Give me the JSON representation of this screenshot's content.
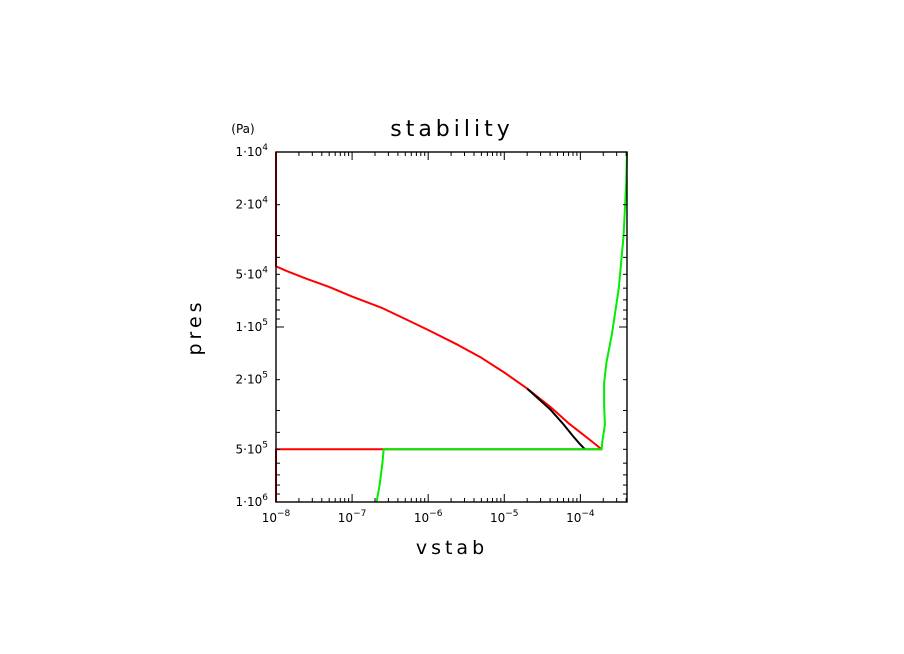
{
  "chart_data": {
    "type": "line",
    "title": "stability",
    "xlabel": "vstab",
    "ylabel": "pres",
    "yunit": "(Pa)",
    "xscale": "log",
    "yscale": "log",
    "y_inverted": true,
    "xlim": [
      1e-08,
      0.00041
    ],
    "ylim": [
      10000,
      1000000
    ],
    "grid": false,
    "legend": "none",
    "x_ticks": [
      {
        "value": 1e-08,
        "base": "10",
        "exp": "−8"
      },
      {
        "value": 1e-07,
        "base": "10",
        "exp": "−7"
      },
      {
        "value": 1e-06,
        "base": "10",
        "exp": "−6"
      },
      {
        "value": 1e-05,
        "base": "10",
        "exp": "−5"
      },
      {
        "value": 0.0001,
        "base": "10",
        "exp": "−4"
      }
    ],
    "y_ticks": [
      {
        "value": 10000,
        "base": "1·10",
        "exp": "4"
      },
      {
        "value": 20000,
        "base": "2·10",
        "exp": "4"
      },
      {
        "value": 50000,
        "base": "5·10",
        "exp": "4"
      },
      {
        "value": 100000,
        "base": "1·10",
        "exp": "5"
      },
      {
        "value": 200000,
        "base": "2·10",
        "exp": "5"
      },
      {
        "value": 500000,
        "base": "5·10",
        "exp": "5"
      },
      {
        "value": 1000000,
        "base": "1·10",
        "exp": "6"
      }
    ],
    "series": [
      {
        "color": "#ff0000",
        "points": [
          [
            1e-08,
            10000
          ],
          [
            1e-08,
            45000
          ],
          [
            1.4e-08,
            48000
          ],
          [
            2.5e-08,
            53000
          ],
          [
            5e-08,
            59000
          ],
          [
            1e-07,
            67000
          ],
          [
            2.5e-07,
            78000
          ],
          [
            5e-07,
            90000
          ],
          [
            1e-06,
            104000
          ],
          [
            2.5e-06,
            127000
          ],
          [
            5e-06,
            150000
          ],
          [
            1e-05,
            182000
          ],
          [
            2e-05,
            225000
          ],
          [
            4e-05,
            285000
          ],
          [
            7e-05,
            355000
          ],
          [
            0.0001,
            400000
          ],
          [
            0.00015,
            460000
          ],
          [
            0.00019,
            500000
          ],
          [
            1e-08,
            500000
          ],
          [
            1e-08,
            1000000
          ]
        ]
      },
      {
        "color": "#000000",
        "points": [
          [
            2e-05,
            225000
          ],
          [
            4e-05,
            295000
          ],
          [
            6e-05,
            360000
          ],
          [
            8e-05,
            420000
          ],
          [
            0.0001,
            470000
          ],
          [
            0.000115,
            500000
          ]
        ]
      },
      {
        "color": "#00ee00",
        "points": [
          [
            0.00041,
            10000
          ],
          [
            0.0004,
            15000
          ],
          [
            0.00037,
            30000
          ],
          [
            0.00032,
            60000
          ],
          [
            0.00026,
            110000
          ],
          [
            0.00022,
            160000
          ],
          [
            0.000205,
            210000
          ],
          [
            0.000205,
            280000
          ],
          [
            0.00021,
            360000
          ],
          [
            0.000195,
            450000
          ],
          [
            0.00019,
            500000
          ],
          [
            2.6e-07,
            500000
          ],
          [
            2.5e-07,
            600000
          ],
          [
            2.3e-07,
            800000
          ],
          [
            2.1e-07,
            1000000
          ]
        ]
      }
    ]
  }
}
